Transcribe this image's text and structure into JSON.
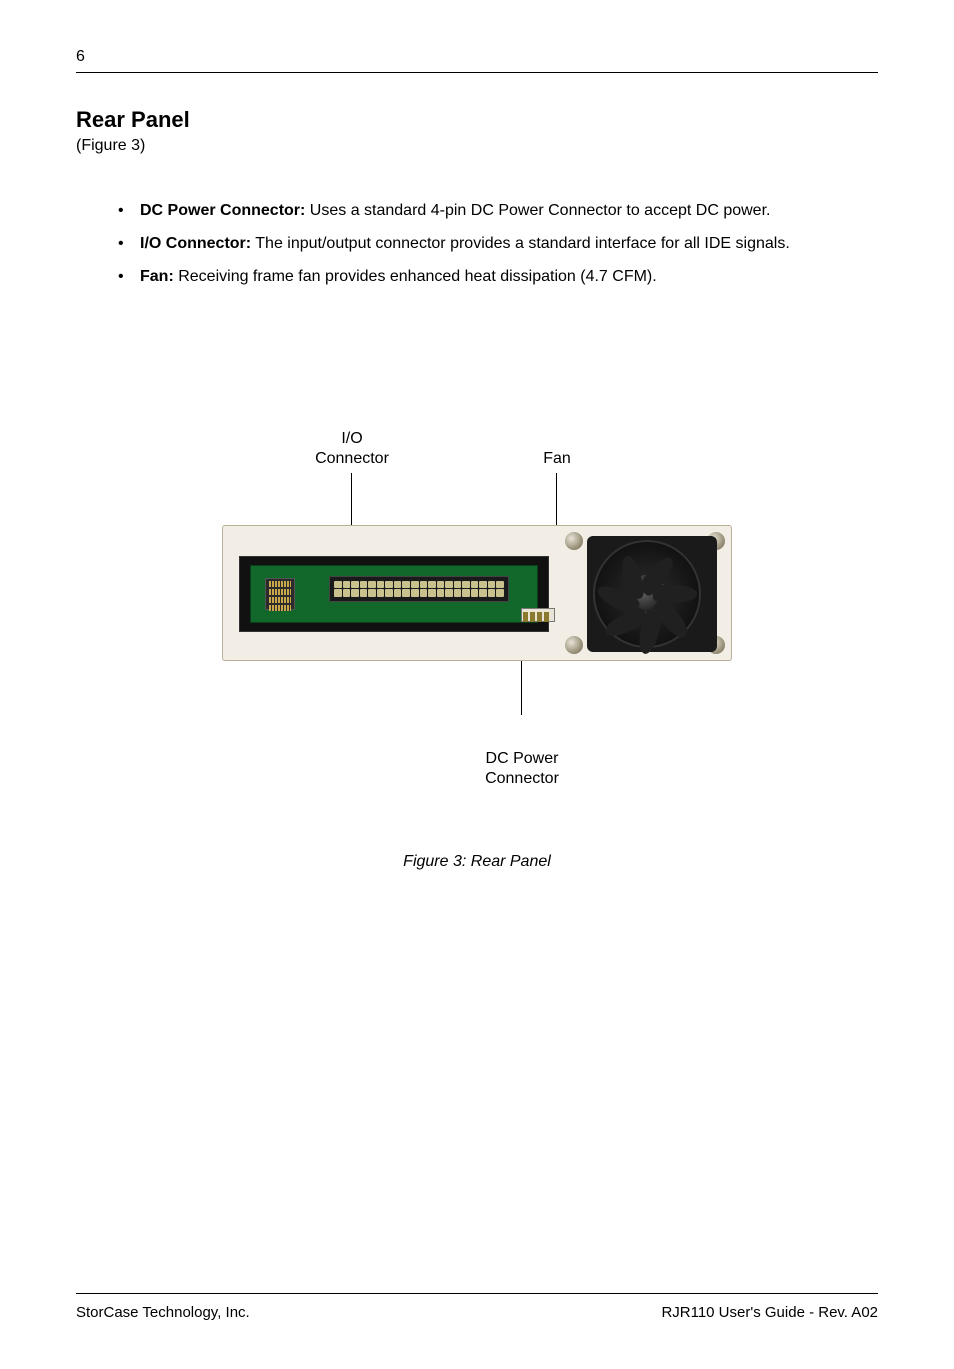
{
  "page_number": "6",
  "section_title": "Rear Panel",
  "figure_ref": "(Figure 3)",
  "bullets": [
    {
      "label": "DC Power Connector:",
      "text": "  Uses a standard 4-pin DC Power Connector to accept DC power."
    },
    {
      "label": "I/O Connector:",
      "text": "  The input/output connector provides a standard interface for all IDE signals."
    },
    {
      "label": "Fan:",
      "text": "  Receiving frame fan provides enhanced heat dissipation (4.7 CFM)."
    }
  ],
  "figure": {
    "labels": {
      "io": "I/O\nConnector",
      "fan": "Fan",
      "dc": "DC Power\nConnector"
    },
    "caption": "Figure 3:   Rear Panel",
    "colors": {
      "panel_bg": "#f2eee6",
      "panel_border": "#b8b099",
      "pcb_bg": "#12682a",
      "pcb_border": "#0b3d18",
      "slot_bg": "#111111",
      "ide_bg": "#1a1a1a",
      "pin_color": "#c9c28f",
      "fan_bg": "#1a1a1a",
      "screw_light": "#e8e4d8",
      "screw_dark": "#6e6752"
    },
    "ide_pin_cols": 20,
    "ide_pin_rows": 2,
    "fan_blades": 7
  },
  "footer": {
    "left": "StorCase Technology, Inc.",
    "right": "RJR110 User's Guide - Rev. A02"
  }
}
